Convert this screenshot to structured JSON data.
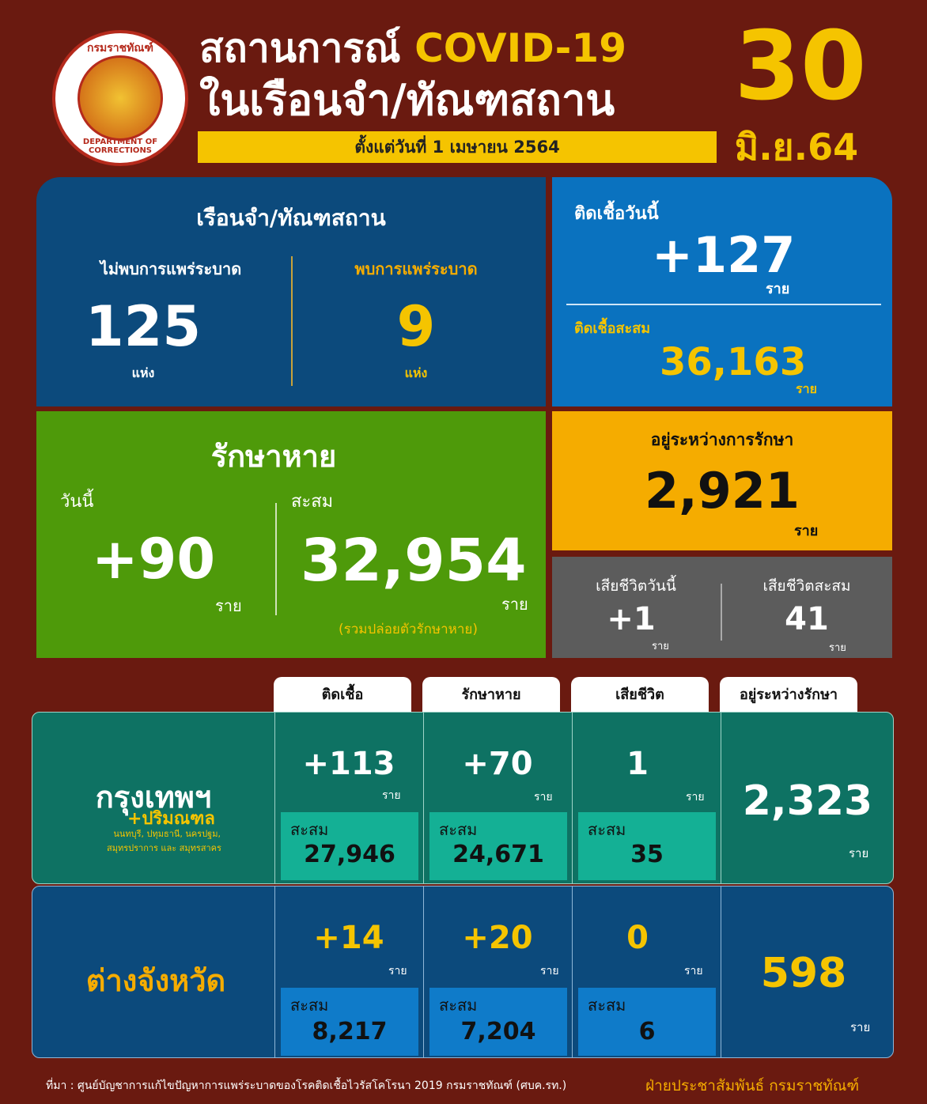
{
  "header": {
    "logo_text_top": "กรมราชทัณฑ์",
    "logo_text_bottom": "DEPARTMENT OF CORRECTIONS",
    "title_line1": "สถานการณ์",
    "title_covid": "COVID-19",
    "title_line2": "ในเรือนจำ/ทัณฑสถาน",
    "since": "ตั้งแต่วันที่ 1 เมษายน 2564",
    "day": "30",
    "month_year": "มิ.ย.64"
  },
  "prisons": {
    "title": "เรือนจำ/ทัณฑสถาน",
    "no_outbreak_label": "ไม่พบการแพร่ระบาด",
    "no_outbreak_value": "125",
    "outbreak_label": "พบการแพร่ระบาด",
    "outbreak_value": "9",
    "unit": "แห่ง"
  },
  "infected": {
    "today_label": "ติดเชื้อวันนี้",
    "today_value": "+127",
    "cumulative_label": "ติดเชื้อสะสม",
    "cumulative_value": "36,163",
    "unit": "ราย"
  },
  "recovered": {
    "title": "รักษาหาย",
    "today_label": "วันนี้",
    "today_value": "+90",
    "cumulative_label": "สะสม",
    "cumulative_value": "32,954",
    "note": "(รวมปล่อยตัวรักษาหาย)",
    "unit": "ราย"
  },
  "treating": {
    "label": "อยู่ระหว่างการรักษา",
    "value": "2,921",
    "unit": "ราย"
  },
  "deaths": {
    "today_label": "เสียชีวิตวันนี้",
    "today_value": "+1",
    "cumulative_label": "เสียชีวิตสะสม",
    "cumulative_value": "41",
    "unit": "ราย"
  },
  "table": {
    "headers": [
      "ติดเชื้อ",
      "รักษาหาย",
      "เสียชีวิต",
      "อยู่ระหว่างรักษา"
    ],
    "cum_label": "สะสม",
    "unit": "ราย",
    "rows": [
      {
        "region": "กรุงเทพฯ",
        "region_sub": "+ปริมณฑล",
        "region_note1": "นนทบุรี, ปทุมธานี, นครปฐม,",
        "region_note2": "สมุทรปราการ และ สมุทรสาคร",
        "cells": [
          {
            "today": "+113",
            "cum": "27,946"
          },
          {
            "today": "+70",
            "cum": "24,671"
          },
          {
            "today": "1",
            "cum": "35"
          }
        ],
        "treating": "2,323"
      },
      {
        "region": "ต่างจังหวัด",
        "cells": [
          {
            "today": "+14",
            "cum": "8,217"
          },
          {
            "today": "+20",
            "cum": "7,204"
          },
          {
            "today": "0",
            "cum": "6"
          }
        ],
        "treating": "598"
      }
    ]
  },
  "footer": {
    "source": "ที่มา : ศูนย์บัญชาการแก้ไขปัญหาการแพร่ระบาดของโรคติดเชื้อไวรัสโคโรนา 2019 กรมราชทัณฑ์ (ศบค.รท.)",
    "credit": "ฝ่ายประชาสัมพันธ์ กรมราชทัณฑ์"
  },
  "colors": {
    "background": "#6a1a10",
    "navy": "#0c4a7c",
    "blue": "#0a72bf",
    "green": "#4e9a0a",
    "orange": "#f5ac00",
    "gray": "#5c5c5c",
    "teal": "#0e7263",
    "accent": "#f5c400"
  }
}
